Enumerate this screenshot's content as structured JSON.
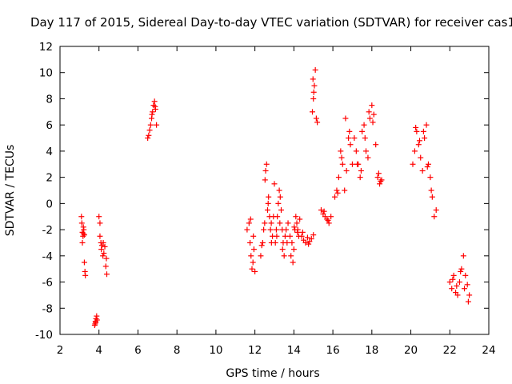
{
  "chart_data": {
    "type": "scatter",
    "title": "Day 117 of 2015, Sidereal Day-to-day VTEC variation (SDTVAR) for receiver cas1",
    "xlabel": "GPS time / hours",
    "ylabel": "SDTVAR / TECUs",
    "xlim": [
      2,
      24
    ],
    "ylim": [
      -10,
      12
    ],
    "xticks": [
      2,
      4,
      6,
      8,
      10,
      12,
      14,
      16,
      18,
      20,
      22,
      24
    ],
    "yticks": [
      -10,
      -8,
      -6,
      -4,
      -2,
      0,
      2,
      4,
      6,
      8,
      10,
      12
    ],
    "marker": "+",
    "color": "#ff0000",
    "series": [
      {
        "name": "SDTVAR",
        "x": [
          3.1,
          3.12,
          3.15,
          3.18,
          3.2,
          3.22,
          3.25,
          3.28,
          3.3,
          3.15,
          3.2,
          3.25,
          3.8,
          3.82,
          3.85,
          3.88,
          3.9,
          3.78,
          3.83,
          4.0,
          4.05,
          4.1,
          4.12,
          4.15,
          4.2,
          4.25,
          4.3,
          4.35,
          4.4,
          4.05,
          4.22,
          4.38,
          6.5,
          6.55,
          6.6,
          6.65,
          6.7,
          6.75,
          6.8,
          6.85,
          6.9,
          6.95,
          6.72,
          6.88,
          11.6,
          11.7,
          11.75,
          11.8,
          11.85,
          11.9,
          11.95,
          12.0,
          11.78,
          11.92,
          12.3,
          12.35,
          12.4,
          12.45,
          12.5,
          12.55,
          12.6,
          12.65,
          12.7,
          12.75,
          12.8,
          12.85,
          12.9,
          12.95,
          13.0,
          12.52,
          12.68,
          12.84,
          13.05,
          13.1,
          13.15,
          13.2,
          13.25,
          13.3,
          13.35,
          13.4,
          13.45,
          13.5,
          13.12,
          13.28,
          13.42,
          13.55,
          13.6,
          13.7,
          13.8,
          13.9,
          13.95,
          14.0,
          14.05,
          14.1,
          14.15,
          14.2,
          14.25,
          14.3,
          13.65,
          13.85,
          14.02,
          14.18,
          14.4,
          14.5,
          14.6,
          14.7,
          14.8,
          14.9,
          15.0,
          14.45,
          14.75,
          14.95,
          15.0,
          15.05,
          15.1,
          15.15,
          15.2,
          14.98,
          15.02,
          15.4,
          15.5,
          15.6,
          15.7,
          15.8,
          15.9,
          15.55,
          15.75,
          16.1,
          16.2,
          16.3,
          16.4,
          16.5,
          16.6,
          16.7,
          16.8,
          16.9,
          17.0,
          16.25,
          16.45,
          16.65,
          16.85,
          17.1,
          17.2,
          17.3,
          17.4,
          17.5,
          17.6,
          17.7,
          17.8,
          17.9,
          18.0,
          18.1,
          18.2,
          17.25,
          17.45,
          17.65,
          17.85,
          18.05,
          18.3,
          18.4,
          18.5,
          18.35,
          18.45,
          20.1,
          20.2,
          20.3,
          20.4,
          20.5,
          20.6,
          20.7,
          20.8,
          20.9,
          21.0,
          21.1,
          21.2,
          21.3,
          20.25,
          20.45,
          20.65,
          20.85,
          21.05,
          22.0,
          22.1,
          22.2,
          22.3,
          22.4,
          22.5,
          22.6,
          22.7,
          22.8,
          22.9,
          23.0,
          22.15,
          22.35,
          22.55,
          22.75,
          22.95
        ],
        "y": [
          -1.0,
          -1.5,
          -2.2,
          -2.5,
          -2.3,
          -2.0,
          -4.5,
          -5.2,
          -5.5,
          -3.0,
          -1.8,
          -2.4,
          -9.2,
          -9.0,
          -8.8,
          -8.6,
          -8.9,
          -9.3,
          -9.1,
          -1.0,
          -2.5,
          -3.0,
          -3.5,
          -3.2,
          -4.0,
          -3.8,
          -3.3,
          -4.8,
          -5.4,
          -1.5,
          -3.0,
          -4.2,
          5.0,
          5.2,
          5.6,
          6.0,
          6.5,
          7.0,
          7.5,
          7.8,
          7.2,
          6.0,
          6.8,
          7.4,
          -2.0,
          -1.5,
          -3.0,
          -4.0,
          -5.0,
          -4.5,
          -3.5,
          -5.2,
          -1.2,
          -2.5,
          -4.0,
          -3.2,
          -3.0,
          -2.0,
          -1.5,
          2.5,
          3.0,
          -0.5,
          0.5,
          -1.0,
          -2.0,
          -3.0,
          -2.5,
          -1.0,
          1.5,
          1.8,
          0.0,
          -1.5,
          -3.0,
          -2.0,
          -1.0,
          0.0,
          1.0,
          0.5,
          -0.5,
          -2.0,
          -3.0,
          -4.0,
          -2.5,
          -1.5,
          -3.5,
          -2.5,
          -2.0,
          -1.5,
          -2.5,
          -3.0,
          -4.5,
          -3.5,
          -2.0,
          -1.0,
          -1.5,
          -2.0,
          -2.5,
          -1.2,
          -3.0,
          -4.0,
          -1.8,
          -2.2,
          -2.5,
          -2.8,
          -3.0,
          -2.6,
          -2.9,
          -2.7,
          -2.4,
          -2.2,
          -3.1,
          7.0,
          8.0,
          9.0,
          10.2,
          6.5,
          6.2,
          9.5,
          8.5,
          -0.5,
          -0.8,
          -1.0,
          -1.2,
          -1.5,
          -1.0,
          -0.6,
          -1.3,
          0.5,
          1.0,
          2.0,
          4.0,
          3.0,
          1.0,
          2.5,
          5.0,
          4.5,
          3.0,
          0.8,
          3.5,
          6.5,
          5.5,
          5.0,
          4.0,
          3.0,
          2.0,
          5.5,
          6.0,
          4.0,
          3.5,
          6.5,
          7.5,
          6.8,
          4.5,
          3.0,
          2.5,
          5.0,
          7.0,
          6.2,
          2.0,
          1.5,
          1.8,
          2.3,
          1.7,
          3.0,
          4.0,
          5.5,
          4.5,
          3.5,
          2.5,
          5.0,
          6.0,
          3.0,
          2.0,
          0.5,
          -1.0,
          -0.5,
          5.8,
          4.8,
          5.5,
          2.8,
          1.0,
          -6.0,
          -6.5,
          -5.5,
          -6.8,
          -7.0,
          -6.0,
          -5.0,
          -4.0,
          -5.5,
          -6.2,
          -7.0,
          -5.8,
          -6.3,
          -5.2,
          -6.5,
          -7.5
        ]
      }
    ]
  }
}
